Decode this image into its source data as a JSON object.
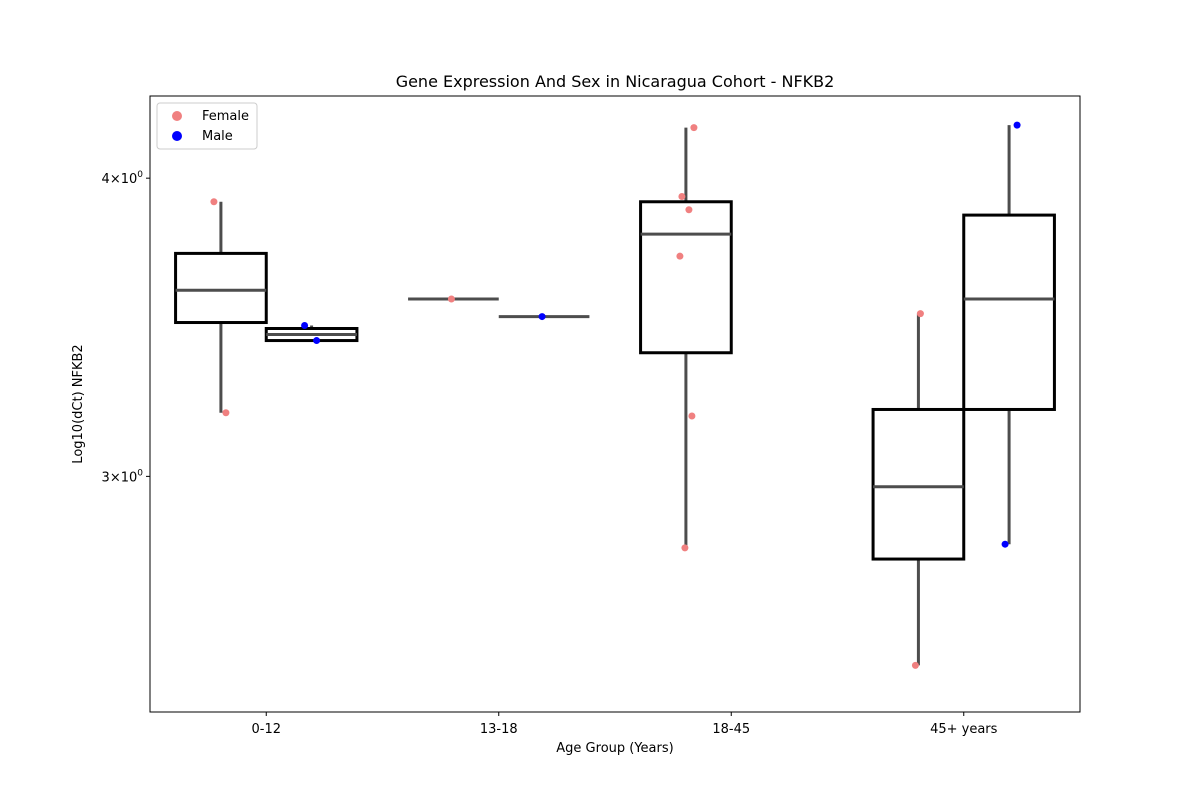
{
  "chart_data": {
    "type": "box",
    "title": "Gene Expression And Sex in Nicaragua Cohort - NFKB2",
    "xlabel": "Age Group (Years)",
    "ylabel": "Log10(dCt) NFKB2",
    "y_scale": "log",
    "ylim": [
      2.39,
      4.33
    ],
    "y_ticks": [
      {
        "value": 3,
        "label_base": "3",
        "label_exp": "0"
      },
      {
        "value": 4,
        "label_base": "4",
        "label_exp": "0"
      }
    ],
    "categories": [
      "0-12",
      "13-18",
      "18-45",
      "45+ years"
    ],
    "legend": {
      "placement": "top-left",
      "entries": [
        {
          "name": "Female",
          "color": "#f08080"
        },
        {
          "name": "Male",
          "color": "#0000ff"
        }
      ]
    },
    "series": [
      {
        "name": "Female",
        "color": "#f08080",
        "boxes": [
          {
            "category": "0-12",
            "whisker_low": 3.19,
            "q1": 3.48,
            "median": 3.59,
            "q3": 3.72,
            "whisker_high": 3.91
          },
          {
            "category": "13-18",
            "whisker_low": 3.56,
            "q1": 3.56,
            "median": 3.56,
            "q3": 3.56,
            "whisker_high": 3.56
          },
          {
            "category": "18-45",
            "whisker_low": 2.8,
            "q1": 3.38,
            "median": 3.79,
            "q3": 3.91,
            "whisker_high": 4.2
          },
          {
            "category": "45+ years",
            "whisker_low": 2.5,
            "q1": 2.77,
            "median": 2.97,
            "q3": 3.2,
            "whisker_high": 3.51
          }
        ],
        "points": [
          {
            "category": "0-12",
            "y": 3.91
          },
          {
            "category": "0-12",
            "y": 3.19
          },
          {
            "category": "13-18",
            "y": 3.56
          },
          {
            "category": "18-45",
            "y": 4.2
          },
          {
            "category": "18-45",
            "y": 3.93
          },
          {
            "category": "18-45",
            "y": 3.88
          },
          {
            "category": "18-45",
            "y": 3.71
          },
          {
            "category": "18-45",
            "y": 3.18
          },
          {
            "category": "18-45",
            "y": 2.8
          },
          {
            "category": "45+ years",
            "y": 3.51
          },
          {
            "category": "45+ years",
            "y": 2.5
          }
        ]
      },
      {
        "name": "Male",
        "color": "#0000ff",
        "boxes": [
          {
            "category": "0-12",
            "whisker_low": 3.42,
            "q1": 3.42,
            "median": 3.44,
            "q3": 3.46,
            "whisker_high": 3.47
          },
          {
            "category": "13-18",
            "whisker_low": 3.5,
            "q1": 3.5,
            "median": 3.5,
            "q3": 3.5,
            "whisker_high": 3.5
          },
          {
            "category": "45+ years",
            "whisker_low": 2.81,
            "q1": 3.2,
            "median": 3.56,
            "q3": 3.86,
            "whisker_high": 4.21
          }
        ],
        "points": [
          {
            "category": "0-12",
            "y": 3.47
          },
          {
            "category": "0-12",
            "y": 3.42
          },
          {
            "category": "13-18",
            "y": 3.5
          },
          {
            "category": "45+ years",
            "y": 4.21
          },
          {
            "category": "45+ years",
            "y": 2.81
          }
        ]
      }
    ],
    "colors": {
      "box_edge": "#000000",
      "whisker": "#4d4d4d",
      "median": "#4d4d4d",
      "axes": "#000000"
    }
  }
}
